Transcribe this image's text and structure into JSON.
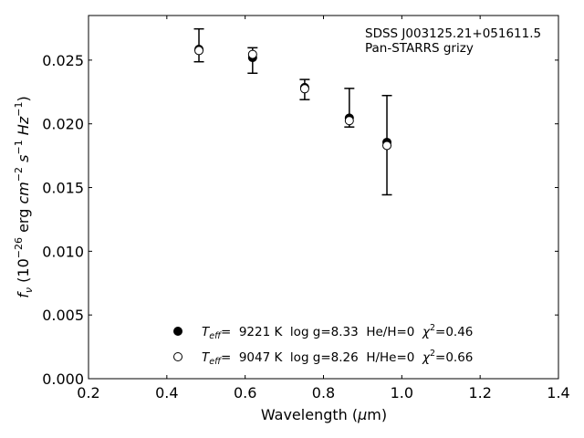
{
  "chart_data": {
    "type": "scatter",
    "xlabel": {
      "text": "Wavelength (",
      "symbol": "μ",
      "unit": "m)"
    },
    "ylabel": {
      "f": "f",
      "nu": "ν",
      "open": " (10",
      "exp1": "−26",
      "erg": " erg ",
      "cm": "cm",
      "exp2": "−2",
      "s": "s",
      "exp3": "−1",
      "hz": "Hz",
      "exp4": "−1",
      "close": ")"
    },
    "xlim": [
      0.2,
      1.4
    ],
    "ylim": [
      0.0,
      0.0285
    ],
    "x_ticks": [
      {
        "value": 0.2,
        "label": "0.2"
      },
      {
        "value": 0.4,
        "label": "0.4"
      },
      {
        "value": 0.6,
        "label": "0.6"
      },
      {
        "value": 0.8,
        "label": "0.8"
      },
      {
        "value": 1.0,
        "label": "1.0"
      },
      {
        "value": 1.2,
        "label": "1.2"
      },
      {
        "value": 1.4,
        "label": "1.4"
      }
    ],
    "y_ticks": [
      {
        "value": 0.0,
        "label": "0.000"
      },
      {
        "value": 0.005,
        "label": "0.005"
      },
      {
        "value": 0.01,
        "label": "0.010"
      },
      {
        "value": 0.015,
        "label": "0.015"
      },
      {
        "value": 0.02,
        "label": "0.020"
      },
      {
        "value": 0.025,
        "label": "0.025"
      }
    ],
    "annotation": [
      "SDSS J003125.21+051611.5",
      "Pan-STARRS grizy"
    ],
    "observed": {
      "x": [
        0.482,
        0.619,
        0.752,
        0.866,
        0.962
      ],
      "y": [
        0.0258,
        0.02535,
        0.0228,
        0.02035,
        0.0183
      ],
      "yerr_low": [
        0.02487,
        0.02397,
        0.0219,
        0.01975,
        0.01443
      ],
      "yerr_high": [
        0.02745,
        0.02597,
        0.02348,
        0.02278,
        0.02222
      ]
    },
    "series": [
      {
        "marker": "filled-circle",
        "teff_label": "T",
        "teff_sub": "eff",
        "text_main": "=  9221 K  log g=8.33  He/H=0  ",
        "chi": "χ",
        "chi_exp": "2",
        "chi_text": "=0.46",
        "x": [
          0.482,
          0.619,
          0.752,
          0.866,
          0.962
        ],
        "y": [
          0.02585,
          0.0252,
          0.02285,
          0.02045,
          0.01855
        ]
      },
      {
        "marker": "open-circle",
        "teff_label": "T",
        "teff_sub": "eff",
        "text_main": "=  9047 K  log g=8.26  H/He=0  ",
        "chi": "χ",
        "chi_exp": "2",
        "chi_text": "=0.66",
        "x": [
          0.482,
          0.619,
          0.752,
          0.866,
          0.962
        ],
        "y": [
          0.02575,
          0.02545,
          0.02275,
          0.02025,
          0.0183
        ]
      }
    ]
  }
}
